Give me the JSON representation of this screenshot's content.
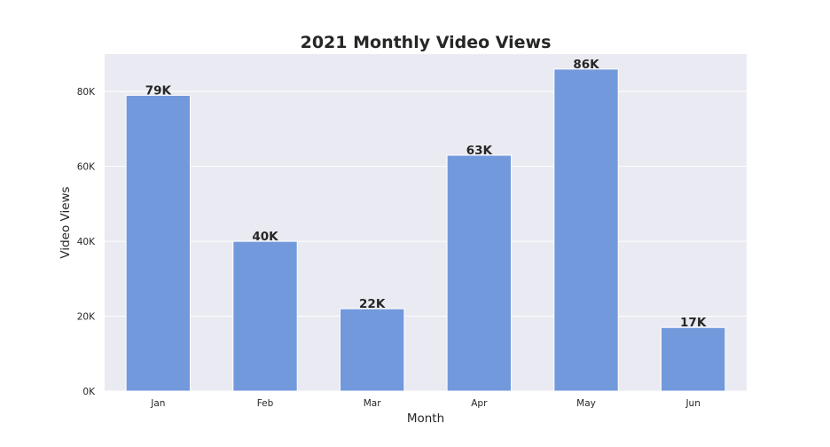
{
  "chart_data": {
    "type": "bar",
    "title": "2021 Monthly Video Views",
    "xlabel": "Month",
    "ylabel": "Video Views",
    "categories": [
      "Jan",
      "Feb",
      "Mar",
      "Apr",
      "May",
      "Jun"
    ],
    "values": [
      79000,
      40000,
      22000,
      63000,
      86000,
      17000
    ],
    "value_labels": [
      "79K",
      "40K",
      "22K",
      "63K",
      "86K",
      "17K"
    ],
    "ylim": [
      0,
      90000
    ],
    "yticks": [
      0,
      20000,
      40000,
      60000,
      80000
    ],
    "ytick_labels": [
      "0K",
      "20K",
      "40K",
      "60K",
      "80K"
    ],
    "grid": true,
    "colors": {
      "bar": "#7399dd",
      "background": "#eaeaf2"
    }
  }
}
